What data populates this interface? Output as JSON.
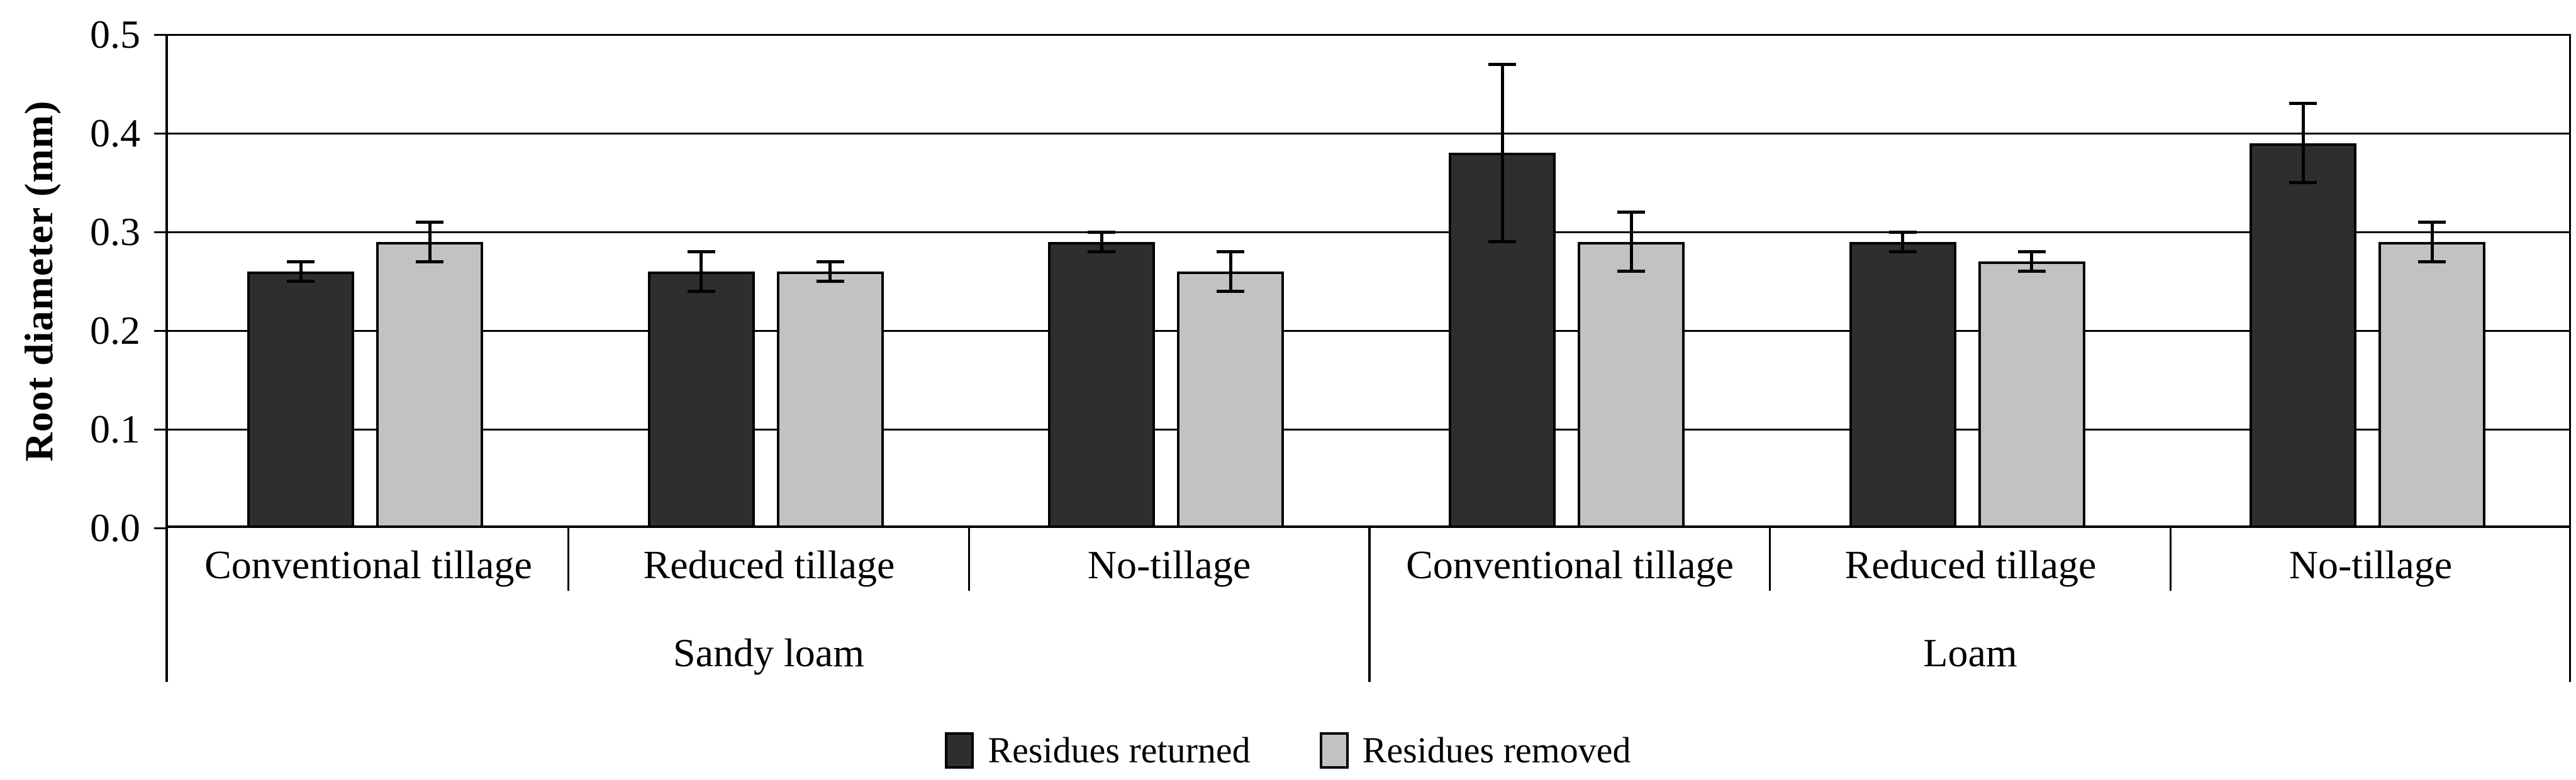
{
  "chart_data": {
    "type": "bar",
    "title": "",
    "ylabel": "Root diameter (mm)",
    "xlabel": "",
    "ylim": [
      0.0,
      0.5
    ],
    "ytick_labels": [
      "0.0",
      "0.1",
      "0.2",
      "0.3",
      "0.4",
      "0.5"
    ],
    "grid": "horizontal",
    "legend_position": "bottom",
    "categories": [
      "Conventional tillage",
      "Reduced tillage",
      "No-tillage",
      "Conventional tillage",
      "Reduced tillage",
      "No-tillage"
    ],
    "category_groups": [
      {
        "label": "Sandy loam",
        "start": 0,
        "end": 2
      },
      {
        "label": "Loam",
        "start": 3,
        "end": 5
      }
    ],
    "series": [
      {
        "name": "Residues returned",
        "color": "#2e2e2e",
        "values": [
          0.26,
          0.26,
          0.29,
          0.38,
          0.29,
          0.39
        ],
        "error_bars": [
          0.01,
          0.02,
          0.01,
          0.09,
          0.01,
          0.04
        ]
      },
      {
        "name": "Residues removed",
        "color": "#c2c2c2",
        "values": [
          0.29,
          0.26,
          0.26,
          0.29,
          0.27,
          0.29
        ],
        "error_bars": [
          0.02,
          0.01,
          0.02,
          0.03,
          0.01,
          0.02
        ]
      }
    ]
  },
  "colors": {
    "background": "#ffffff",
    "axis": "#000000",
    "bar_border": "#000000",
    "error_bar": "#000000"
  }
}
